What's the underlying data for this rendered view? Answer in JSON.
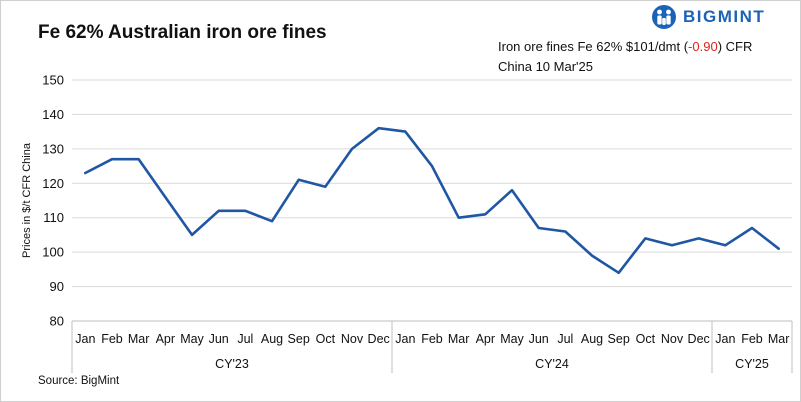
{
  "brand": {
    "logo_text": "BIGMINT",
    "accent_color": "#1c63b7"
  },
  "annotation": {
    "line1_prefix": "Iron ore fines Fe 62% $101/dmt (",
    "change": "-0.90",
    "line1_suffix": ") CFR",
    "line2": "China 10 Mar'25",
    "change_color": "#e0251b"
  },
  "source": "Source: BigMint",
  "chart_data": {
    "type": "line",
    "title": "Fe 62% Australian iron ore fines",
    "ylabel": "Prices in $/t CFR China",
    "xlabel": "",
    "ylim": [
      80,
      150
    ],
    "yticks": [
      80,
      90,
      100,
      110,
      120,
      130,
      140,
      150
    ],
    "grid": true,
    "line_color": "#1f57a4",
    "categories": [
      "Jan",
      "Feb",
      "Mar",
      "Apr",
      "May",
      "Jun",
      "Jul",
      "Aug",
      "Sep",
      "Oct",
      "Nov",
      "Dec",
      "Jan",
      "Feb",
      "Mar",
      "Apr",
      "May",
      "Jun",
      "Jul",
      "Aug",
      "Sep",
      "Oct",
      "Nov",
      "Dec",
      "Jan",
      "Feb",
      "Mar"
    ],
    "groups": [
      {
        "label": "CY'23",
        "start": 0,
        "count": 12
      },
      {
        "label": "CY'24",
        "start": 12,
        "count": 12
      },
      {
        "label": "CY'25",
        "start": 24,
        "count": 3
      }
    ],
    "series": [
      {
        "values": [
          123,
          127,
          127,
          116,
          105,
          112,
          112,
          109,
          121,
          119,
          130,
          136,
          135,
          125,
          110,
          111,
          118,
          107,
          106,
          99,
          94,
          104,
          102,
          104,
          102,
          107,
          101
        ]
      }
    ]
  }
}
